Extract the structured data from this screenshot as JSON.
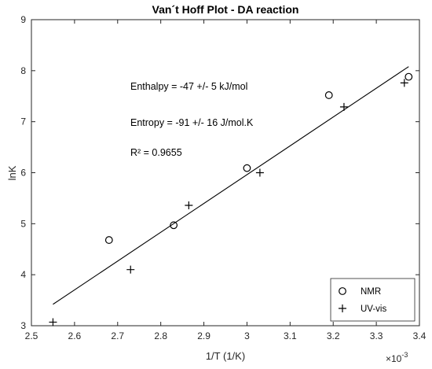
{
  "chart_data": {
    "type": "scatter",
    "title": "Van´t Hoff Plot - DA reaction",
    "xlabel": "1/T (1/K)",
    "ylabel": "lnK",
    "x_exponent_label": "×10",
    "x_exponent_power": "-3",
    "xlim": [
      2.5,
      3.4
    ],
    "ylim": [
      3,
      9
    ],
    "xticks": [
      "2.5",
      "2.6",
      "2.7",
      "2.8",
      "2.9",
      "3",
      "3.1",
      "3.2",
      "3.3",
      "3.4"
    ],
    "yticks": [
      "3",
      "4",
      "5",
      "6",
      "7",
      "8",
      "9"
    ],
    "series": [
      {
        "name": "NMR",
        "marker": "circle",
        "x": [
          2.68,
          2.83,
          3.0,
          3.19,
          3.375
        ],
        "y": [
          4.68,
          4.97,
          6.09,
          7.52,
          7.88
        ]
      },
      {
        "name": "UV-vis",
        "marker": "plus",
        "x": [
          2.55,
          2.73,
          2.865,
          3.03,
          3.225,
          3.365
        ],
        "y": [
          3.07,
          4.1,
          5.36,
          6.0,
          7.29,
          7.76
        ]
      }
    ],
    "fit_line": {
      "x": [
        2.55,
        3.375
      ],
      "y": [
        3.42,
        8.08
      ]
    },
    "annotations": [
      "Enthalpy = -47 +/- 5 kJ/mol",
      "Entropy = -91 +/- 16 J/mol.K",
      "R² = 0.9655"
    ],
    "legend_position": "bottom-right",
    "grid": false
  }
}
